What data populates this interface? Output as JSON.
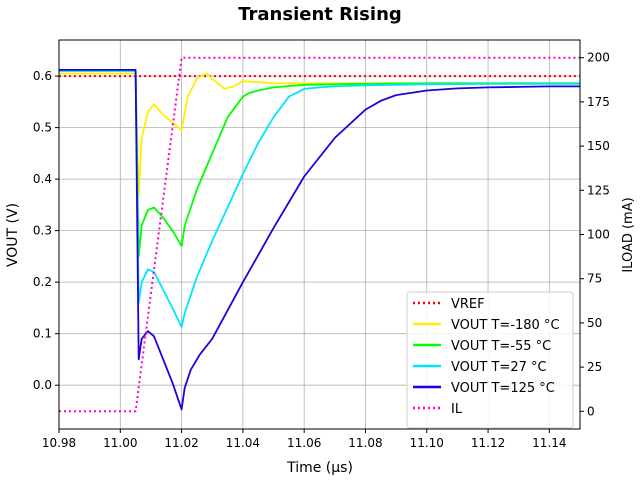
{
  "chart_data": {
    "type": "line",
    "title": "Transient Rising",
    "xlabel": "Time (µs)",
    "ylabel": "VOUT (V)",
    "y2label": "ILOAD (mA)",
    "xlim": [
      10.98,
      11.15
    ],
    "ylim": [
      -0.085,
      0.67
    ],
    "y2lim": [
      -10,
      210
    ],
    "xticks": [
      "10.98",
      "11.00",
      "11.02",
      "11.04",
      "11.06",
      "11.08",
      "11.10",
      "11.12",
      "11.14"
    ],
    "yticks": [
      "0.0",
      "0.1",
      "0.2",
      "0.3",
      "0.4",
      "0.5",
      "0.6"
    ],
    "y2ticks": [
      "0",
      "25",
      "50",
      "75",
      "100",
      "125",
      "150",
      "175",
      "200"
    ],
    "grid": true,
    "legend_position": "lower-right",
    "series": [
      {
        "name": "VREF",
        "axis": "left",
        "style": "dotted",
        "color": "#ff0000",
        "x": [
          10.98,
          11.15
        ],
        "y": [
          0.6,
          0.6
        ]
      },
      {
        "name": "VOUT T=-180 °C",
        "axis": "left",
        "style": "solid",
        "color": "#ffee00",
        "x": [
          10.98,
          11.005,
          11.006,
          11.007,
          11.009,
          11.011,
          11.014,
          11.017,
          11.02,
          11.022,
          11.025,
          11.028,
          11.031,
          11.034,
          11.037,
          11.04,
          11.045,
          11.05,
          11.06,
          11.08,
          11.1,
          11.15
        ],
        "y": [
          0.605,
          0.605,
          0.37,
          0.48,
          0.53,
          0.545,
          0.525,
          0.51,
          0.495,
          0.56,
          0.595,
          0.605,
          0.59,
          0.575,
          0.58,
          0.59,
          0.588,
          0.586,
          0.586,
          0.586,
          0.586,
          0.586
        ]
      },
      {
        "name": "VOUT T=-55 °C",
        "axis": "left",
        "style": "solid",
        "color": "#00ff00",
        "x": [
          10.98,
          11.005,
          11.006,
          11.007,
          11.009,
          11.011,
          11.014,
          11.017,
          11.02,
          11.021,
          11.025,
          11.03,
          11.035,
          11.04,
          11.042,
          11.045,
          11.05,
          11.06,
          11.08,
          11.1,
          11.15
        ],
        "y": [
          0.61,
          0.61,
          0.25,
          0.31,
          0.34,
          0.345,
          0.325,
          0.3,
          0.27,
          0.31,
          0.38,
          0.45,
          0.52,
          0.56,
          0.567,
          0.572,
          0.578,
          0.583,
          0.585,
          0.586,
          0.586
        ]
      },
      {
        "name": "VOUT T=27 °C",
        "axis": "left",
        "style": "solid",
        "color": "#00e5ff",
        "x": [
          10.98,
          11.005,
          11.006,
          11.007,
          11.009,
          11.011,
          11.014,
          11.017,
          11.02,
          11.021,
          11.025,
          11.03,
          11.035,
          11.04,
          11.045,
          11.05,
          11.055,
          11.06,
          11.065,
          11.07,
          11.08,
          11.09,
          11.1,
          11.12,
          11.15
        ],
        "y": [
          0.61,
          0.61,
          0.16,
          0.2,
          0.225,
          0.22,
          0.185,
          0.15,
          0.113,
          0.14,
          0.21,
          0.28,
          0.345,
          0.41,
          0.47,
          0.52,
          0.56,
          0.575,
          0.578,
          0.58,
          0.582,
          0.583,
          0.584,
          0.585,
          0.585
        ]
      },
      {
        "name": "VOUT T=125 °C",
        "axis": "left",
        "style": "solid",
        "color": "#2200dd",
        "x": [
          10.98,
          11.005,
          11.006,
          11.007,
          11.009,
          11.011,
          11.014,
          11.017,
          11.02,
          11.021,
          11.023,
          11.026,
          11.03,
          11.04,
          11.05,
          11.06,
          11.07,
          11.08,
          11.085,
          11.09,
          11.1,
          11.11,
          11.12,
          11.13,
          11.14,
          11.15
        ],
        "y": [
          0.612,
          0.612,
          0.05,
          0.09,
          0.105,
          0.095,
          0.05,
          0.005,
          -0.047,
          -0.005,
          0.03,
          0.06,
          0.09,
          0.2,
          0.305,
          0.405,
          0.48,
          0.535,
          0.552,
          0.563,
          0.572,
          0.576,
          0.578,
          0.579,
          0.58,
          0.58
        ]
      },
      {
        "name": "IL",
        "axis": "right",
        "style": "dotted",
        "color": "#ff00cc",
        "x": [
          10.98,
          11.005,
          11.02,
          11.15
        ],
        "y": [
          0,
          0,
          200,
          200
        ]
      }
    ]
  }
}
